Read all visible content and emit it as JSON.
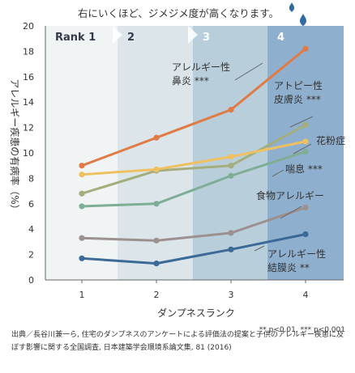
{
  "chart_data": {
    "type": "line",
    "title": "右にいくほど、ジメジメ度が高くなります。",
    "xlabel": "ダンプネスランク",
    "ylabel": "アレルギー疾患の有病率（%）",
    "categories": [
      1,
      2,
      3,
      4
    ],
    "x_tick_labels": [
      "1",
      "2",
      "3",
      "4"
    ],
    "ylim": [
      0,
      20
    ],
    "y_ticks": [
      0,
      2,
      4,
      6,
      8,
      10,
      12,
      14,
      16,
      18,
      20
    ],
    "rank_bands": [
      "Rank 1",
      "2",
      "3",
      "4"
    ],
    "band_colors": [
      "#f1f4f4",
      "#dce6ea",
      "#b9cedb",
      "#8eafcd"
    ],
    "series": [
      {
        "name": "アレルギー性鼻炎 ***",
        "label_lines": [
          "アレルギー性",
          "鼻炎 ***"
        ],
        "color": "#e07b45",
        "values": [
          9.0,
          11.2,
          13.4,
          18.2
        ]
      },
      {
        "name": "アトピー性皮膚炎 ***",
        "label_lines": [
          "アトピー性",
          "皮膚炎 ***"
        ],
        "color": "#a4ad7c",
        "values": [
          6.8,
          8.6,
          9.0,
          12.2
        ]
      },
      {
        "name": "花粉症",
        "label_lines": [
          "花粉症"
        ],
        "color": "#efc05f",
        "values": [
          8.3,
          8.7,
          9.7,
          10.9
        ]
      },
      {
        "name": "喘息 ***",
        "label_lines": [
          "喘息 ***"
        ],
        "color": "#7fae96",
        "values": [
          5.8,
          6.0,
          8.2,
          10.1
        ]
      },
      {
        "name": "食物アレルギー",
        "label_lines": [
          "食物アレルギー"
        ],
        "color": "#9c9090",
        "values": [
          3.3,
          3.1,
          3.7,
          5.7
        ]
      },
      {
        "name": "アレルギー性結膜炎 **",
        "label_lines": [
          "アレルギー性",
          "結膜炎 **"
        ],
        "color": "#3b6a96",
        "values": [
          1.7,
          1.3,
          2.4,
          3.6
        ]
      }
    ],
    "grid": false,
    "legend": "inline-labels"
  },
  "footnote": "** p<0.01, *** p<0.001",
  "source": "出典／長谷川兼一ら, 住宅のダンプネスのアンケートによる評価法の提案と子供のアレルギー疾患に及ぼす影響に関する全国調査, 日本建築学会環境系論文集, 81 (2016)",
  "icons": [
    "water-drop-icon",
    "water-drop-icon"
  ]
}
